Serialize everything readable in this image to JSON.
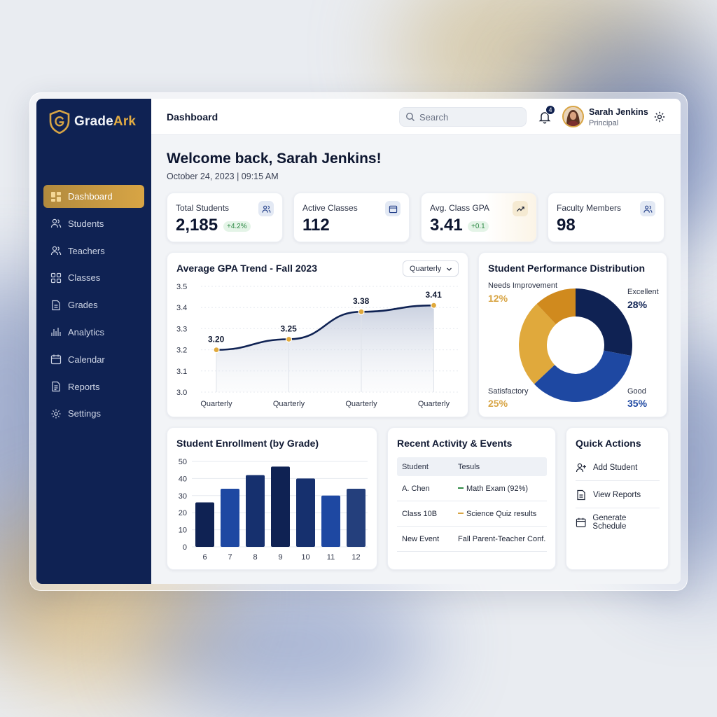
{
  "brand": {
    "name_part1": "Grade",
    "name_part2": "Ark",
    "accent": "#d8a545",
    "navy": "#0f2253"
  },
  "sidebar": {
    "items": [
      {
        "label": "Dashboard",
        "icon": "grid-icon",
        "active": true
      },
      {
        "label": "Students",
        "icon": "users-icon"
      },
      {
        "label": "Teachers",
        "icon": "teacher-icon"
      },
      {
        "label": "Classes",
        "icon": "squares-icon"
      },
      {
        "label": "Grades",
        "icon": "document-icon"
      },
      {
        "label": "Analytics",
        "icon": "bar-chart-icon"
      },
      {
        "label": "Calendar",
        "icon": "calendar-icon"
      },
      {
        "label": "Reports",
        "icon": "report-icon"
      },
      {
        "label": "Settings",
        "icon": "gear-icon"
      }
    ]
  },
  "topbar": {
    "title": "Dashboard",
    "search_placeholder": "Search",
    "notification_count": "4",
    "user_name": "Sarah Jenkins",
    "user_role": "Principal"
  },
  "welcome": {
    "heading": "Welcome back, Sarah Jenkins!",
    "datetime": "October 24, 2023 | 09:15 AM"
  },
  "stats": [
    {
      "label": "Total Students",
      "value": "2,185",
      "delta": "+4.2%",
      "icon": "users-icon"
    },
    {
      "label": "Active Classes",
      "value": "112",
      "icon": "calendar-icon"
    },
    {
      "label": "Avg. Class GPA",
      "value": "3.41",
      "delta": "+0.1",
      "icon": "trend-icon"
    },
    {
      "label": "Faculty Members",
      "value": "98",
      "icon": "users-icon"
    }
  ],
  "gpa_card": {
    "dropdown_value": "Quarterly"
  },
  "activity": {
    "title": "Recent Activity & Events",
    "col1": "Student",
    "col2": "Tesuls",
    "rows": [
      {
        "who": "A. Chen",
        "what": "Math Exam (92%)",
        "marker": "#2f8a46"
      },
      {
        "who": "Class 10B",
        "what": "Science Quiz results",
        "marker": "#d8a545"
      },
      {
        "who": "New Event",
        "what": "Fall Parent-Teacher Conf.",
        "marker": ""
      }
    ]
  },
  "quick_actions": {
    "title": "Quick Actions",
    "items": [
      {
        "label": "Add Student",
        "icon": "add-user-icon"
      },
      {
        "label": "View Reports",
        "icon": "document-icon"
      },
      {
        "label": "Generate Schedule",
        "icon": "calendar-icon"
      }
    ]
  },
  "chart_data": [
    {
      "type": "area",
      "title": "Average GPA Trend - Fall 2023",
      "categories": [
        "Quarterly",
        "Quarterly",
        "Quarterly",
        "Quarterly"
      ],
      "values": [
        3.2,
        3.25,
        3.38,
        3.41
      ],
      "value_labels": [
        "3.20",
        "3.25",
        "3.38",
        "3.41"
      ],
      "yticks": [
        "3.0",
        "3.1",
        "3.2",
        "3.3",
        "3.4",
        "3.5"
      ],
      "ylim": [
        3.0,
        3.5
      ],
      "grid": true
    },
    {
      "type": "pie",
      "title": "Student Performance Distribution",
      "slices": [
        {
          "name": "Excellent",
          "value": 28,
          "label": "28%",
          "color": "#0f2253"
        },
        {
          "name": "Good",
          "value": 35,
          "label": "35%",
          "color": "#1e48a2"
        },
        {
          "name": "Satisfactory",
          "value": 25,
          "label": "25%",
          "color": "#e0a93c"
        },
        {
          "name": "Needs Improvement",
          "value": 12,
          "label": "12%",
          "color": "#d08a1e"
        }
      ]
    },
    {
      "type": "bar",
      "title": "Student Enrollment (by Grade)",
      "categories": [
        "6",
        "7",
        "8",
        "9",
        "10",
        "11",
        "12"
      ],
      "values": [
        26,
        34,
        42,
        47,
        40,
        30,
        34
      ],
      "colors": [
        "#0f2253",
        "#1e48a2",
        "#16306e",
        "#0f2253",
        "#16306e",
        "#1e48a2",
        "#243f7c"
      ],
      "yticks": [
        "0",
        "10",
        "20",
        "30",
        "40",
        "50"
      ],
      "ylim": [
        0,
        50
      ],
      "grid": true
    }
  ]
}
